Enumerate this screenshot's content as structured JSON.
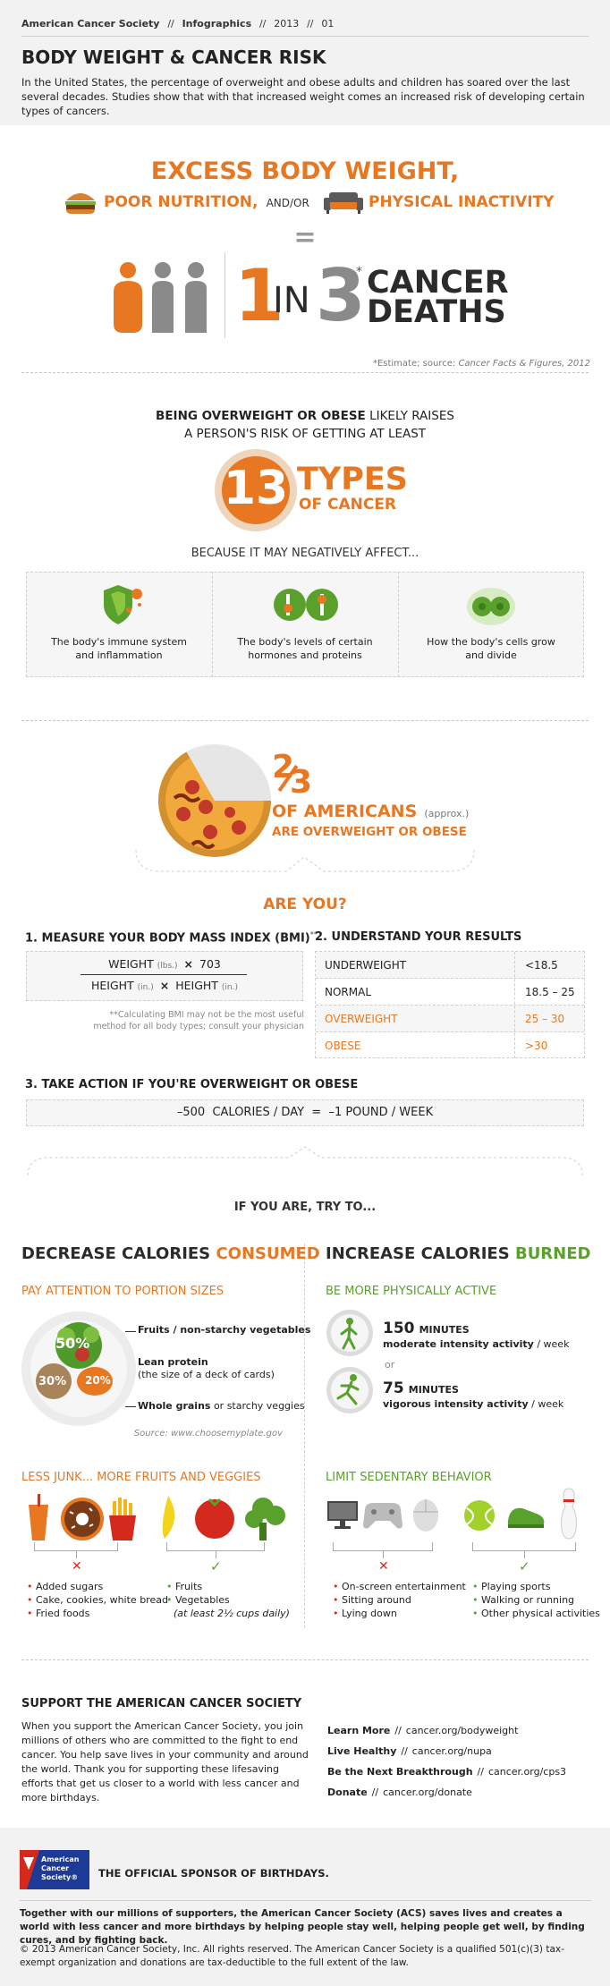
{
  "header": {
    "breadcrumb": [
      "American Cancer Society",
      "Infographics",
      "2013",
      "01"
    ],
    "sep": "//",
    "title": "BODY WEIGHT & CANCER RISK",
    "intro": "In the United States, the percentage of overweight and obese adults and children has soared over the last several decades. Studies show that with that increased weight comes an increased risk of developing certain types of cancers."
  },
  "hero": {
    "line1": "EXCESS BODY WEIGHT,",
    "poor": "POOR NUTRITION,",
    "andor": "AND/OR",
    "inactivity": "PHYSICAL INACTIVITY",
    "equals": "=",
    "one": "1",
    "in": "IN",
    "three": "3",
    "asterisk": "*",
    "cancer": "CANCER",
    "deaths": "DEATHS",
    "estimate": "*Estimate; source:",
    "source": "Cancer Facts & Figures, 2012"
  },
  "types": {
    "line1a": "BEING OVERWEIGHT OR OBESE",
    "line1b": "LIKELY RAISES",
    "line2": "A PERSON'S RISK OF GETTING AT LEAST",
    "number": "13",
    "types": "TYPES",
    "of": "OF CANCER",
    "because": "BECAUSE IT MAY NEGATIVELY AFFECT...",
    "cards": [
      {
        "line1": "The body's immune system",
        "line2": "and inflammation"
      },
      {
        "line1": "The body's levels of certain",
        "line2": "hormones and proteins"
      },
      {
        "line1": "How the body's cells grow",
        "line2": "and divide"
      }
    ]
  },
  "americans": {
    "num": "2",
    "den": "3",
    "of": "OF AMERICANS",
    "approx": "(approx.)",
    "are": "ARE OVERWEIGHT OR OBESE",
    "are_you": "ARE YOU?"
  },
  "bmi": {
    "step1": "1. MEASURE YOUR BODY MASS INDEX (BMI)",
    "step1_sup": "**",
    "weight": "WEIGHT",
    "lbs": "(lbs.)",
    "times": "×",
    "factor": "703",
    "height": "HEIGHT",
    "inch": "(in.)",
    "note1": "**Calculating BMI may not be the most useful",
    "note2": "method for all body types; consult your physician",
    "step2": "2. UNDERSTAND YOUR RESULTS",
    "results": [
      {
        "label": "UNDERWEIGHT",
        "range": "<18.5"
      },
      {
        "label": "NORMAL",
        "range": "18.5 – 25"
      },
      {
        "label": "OVERWEIGHT",
        "range": "25 – 30"
      },
      {
        "label": "OBESE",
        "range": ">30"
      }
    ],
    "step3": "3. TAKE ACTION IF YOU'RE OVERWEIGHT OR OBESE",
    "equation": "–500  CALORIES / DAY  =  –1 POUND / WEEK",
    "try": "IF YOU ARE, TRY TO..."
  },
  "decrease": {
    "title": "DECREASE CALORIES",
    "title_hl": "CONSUMED",
    "portion": "PAY ATTENTION TO PORTION SIZES",
    "p50": "50%",
    "p30": "30%",
    "p20": "20%",
    "fruits": "Fruits / non-starchy vegetables",
    "lean": "Lean protein",
    "lean_sub": "(the size of a deck of cards)",
    "grains": "Whole grains",
    "grains_sub": "or starchy veggies",
    "plate_source": "Source: www.choosemyplate.gov",
    "junk": "LESS JUNK... MORE FRUITS AND VEGGIES",
    "bad": [
      "Added sugars",
      "Cake, cookies, white bread",
      "Fried foods"
    ],
    "good": [
      "Fruits",
      "Vegetables"
    ],
    "good_note": "(at least 2½ cups daily)"
  },
  "increase": {
    "title": "INCREASE CALORIES",
    "title_hl": "BURNED",
    "active": "BE MORE PHYSICALLY ACTIVE",
    "min150": "150",
    "minutes": "MINUTES",
    "moderate": "moderate intensity activity",
    "perweek": "/ week",
    "or": "or",
    "min75": "75",
    "vigorous": "vigorous intensity activity",
    "limit": "LIMIT SEDENTARY BEHAVIOR",
    "bad": [
      "On-screen entertainment",
      "Sitting around",
      "Lying down"
    ],
    "good": [
      "Playing sports",
      "Walking or running",
      "Other physical activities"
    ]
  },
  "support": {
    "title": "SUPPORT THE AMERICAN CANCER SOCIETY",
    "body": "When you support the American Cancer Society, you join millions of others who are committed to the fight to end cancer. You help save lives in your community and around the world. Thank you for supporting these lifesaving efforts that get us closer to a world with less cancer and more birthdays.",
    "links": [
      {
        "label": "Learn More",
        "url": "cancer.org/bodyweight"
      },
      {
        "label": "Live Healthy",
        "url": "cancer.org/nupa"
      },
      {
        "label": "Be the Next Breakthrough",
        "url": "cancer.org/cps3"
      },
      {
        "label": "Donate",
        "url": "cancer.org/donate"
      }
    ]
  },
  "footer": {
    "logo1": "American",
    "logo2": "Cancer",
    "logo3": "Society®",
    "sponsor": "THE OFFICIAL SPONSOR OF BIRTHDAYS.",
    "mission": "Together with our millions of supporters, the American Cancer Society (ACS) saves lives and creates a world with less cancer and more birthdays by helping people stay well, helping people get well, by finding cures, and by fighting back.",
    "copyright": "© 2013 American Cancer Society, Inc. All rights reserved. The American Cancer Society is a qualified 501(c)(3) tax-exempt organization and donations are tax-deductible to the full extent of the law."
  },
  "colors": {
    "orange": "#e87722",
    "green": "#5aa02c",
    "gray": "#8a8a8a",
    "dark": "#2b2b2b",
    "red": "#d42a1e"
  }
}
